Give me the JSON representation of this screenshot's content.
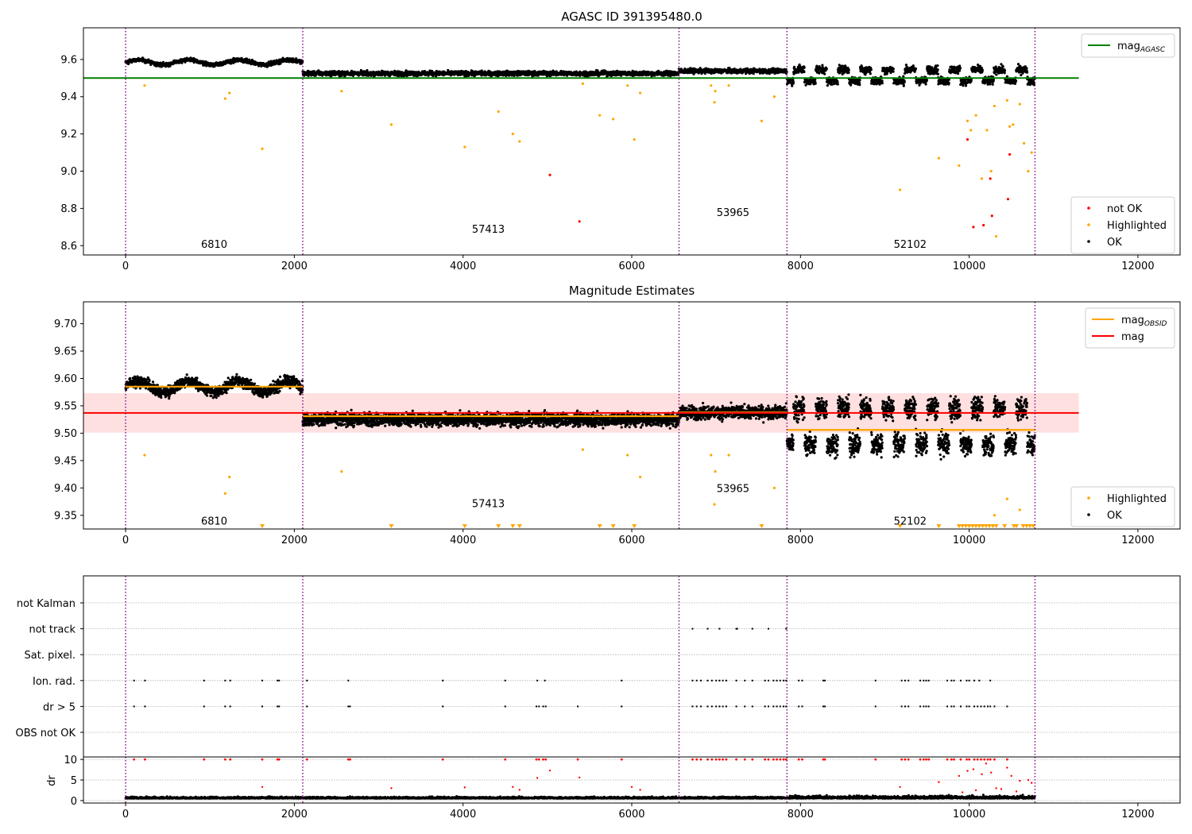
{
  "chart_data": [
    {
      "type": "scatter",
      "title": "AGASC ID 391395480.0",
      "xlim": [
        -500,
        12500
      ],
      "ylim": [
        8.55,
        9.77
      ],
      "x_ticks": [
        0,
        2000,
        4000,
        6000,
        8000,
        10000,
        12000
      ],
      "y_ticks": [
        8.6,
        8.8,
        9.0,
        9.2,
        9.4,
        9.6
      ],
      "reference_line": {
        "name": "mag",
        "subscript": "AGASC",
        "y": 9.5,
        "x_range": [
          -500,
          11300
        ],
        "color": "#008000"
      },
      "obsid_boundaries": [
        0,
        2100,
        6560,
        7840,
        10780
      ],
      "obsid_labels": [
        {
          "text": "6810",
          "x": 1050,
          "y": 8.61
        },
        {
          "text": "57413",
          "x": 4300,
          "y": 8.69
        },
        {
          "text": "53965",
          "x": 7200,
          "y": 8.78
        },
        {
          "text": "52102",
          "x": 9300,
          "y": 8.61
        }
      ],
      "legends": [
        {
          "location": "top-right",
          "entries": [
            {
              "label": "mag",
              "subscript": "AGASC",
              "kind": "line",
              "color": "#008000"
            }
          ]
        },
        {
          "location": "bottom-right",
          "entries": [
            {
              "label": "not OK",
              "kind": "point",
              "color": "#ff0000"
            },
            {
              "label": "Highlighted",
              "kind": "point",
              "color": "#ffa500"
            },
            {
              "label": "OK",
              "kind": "point",
              "color": "#000000"
            }
          ]
        }
      ],
      "segments": [
        {
          "x": [
            0,
            2100
          ],
          "mean": 9.585,
          "spread": 0.03
        },
        {
          "x": [
            2100,
            6560
          ],
          "mean": 9.525,
          "spread": 0.035
        },
        {
          "x": [
            6560,
            7840
          ],
          "mean": 9.538,
          "spread": 0.035
        },
        {
          "x": [
            7840,
            10780
          ],
          "mean": 9.51,
          "spread": 0.06
        }
      ],
      "highlighted_points": [
        [
          1180,
          9.39
        ],
        [
          1230,
          9.42
        ],
        [
          1620,
          9.12
        ],
        [
          2560,
          9.43
        ],
        [
          3150,
          9.25
        ],
        [
          4020,
          9.13
        ],
        [
          4420,
          9.32
        ],
        [
          4590,
          9.2
        ],
        [
          4670,
          9.16
        ],
        [
          5420,
          9.47
        ],
        [
          5620,
          9.3
        ],
        [
          5780,
          9.28
        ],
        [
          5950,
          9.46
        ],
        [
          6030,
          9.17
        ],
        [
          6100,
          9.42
        ],
        [
          6940,
          9.46
        ],
        [
          6980,
          9.37
        ],
        [
          6990,
          9.43
        ],
        [
          7150,
          9.46
        ],
        [
          7540,
          9.27
        ],
        [
          7690,
          9.4
        ],
        [
          9180,
          8.9
        ],
        [
          9640,
          9.07
        ],
        [
          9880,
          9.03
        ],
        [
          9980,
          9.27
        ],
        [
          10020,
          9.22
        ],
        [
          10080,
          9.3
        ],
        [
          10150,
          8.96
        ],
        [
          10210,
          9.22
        ],
        [
          10260,
          9.0
        ],
        [
          10300,
          9.35
        ],
        [
          10320,
          8.65
        ],
        [
          10450,
          9.38
        ],
        [
          10480,
          9.24
        ],
        [
          10520,
          9.25
        ],
        [
          10600,
          9.36
        ],
        [
          10650,
          9.15
        ],
        [
          10700,
          9.0
        ],
        [
          10740,
          9.1
        ],
        [
          225,
          9.46
        ]
      ],
      "not_ok_points": [
        [
          5030,
          8.98
        ],
        [
          5380,
          8.73
        ],
        [
          9980,
          9.17
        ],
        [
          10050,
          8.7
        ],
        [
          10170,
          8.71
        ],
        [
          10250,
          8.96
        ],
        [
          10270,
          8.76
        ],
        [
          10460,
          8.85
        ],
        [
          10480,
          9.09
        ]
      ]
    },
    {
      "type": "scatter",
      "title": "Magnitude Estimates",
      "xlim": [
        -500,
        12500
      ],
      "ylim": [
        9.325,
        9.74
      ],
      "x_ticks": [
        0,
        2000,
        4000,
        6000,
        8000,
        10000,
        12000
      ],
      "y_ticks": [
        9.35,
        9.4,
        9.45,
        9.5,
        9.55,
        9.6,
        9.65,
        9.7
      ],
      "mag_line": {
        "name": "mag",
        "y": 9.537,
        "band": [
          9.501,
          9.573
        ],
        "x_range": [
          -500,
          11300
        ],
        "color": "#ff0000",
        "band_color": "#ffe0e0"
      },
      "obsid_mag_lines": [
        {
          "x": [
            0,
            2100
          ],
          "y": 9.585
        },
        {
          "x": [
            2100,
            6560
          ],
          "y": 9.531
        },
        {
          "x": [
            6560,
            7840
          ],
          "y": 9.538
        },
        {
          "x": [
            7840,
            10780
          ],
          "y": 9.506
        }
      ],
      "obsid_boundaries": [
        0,
        2100,
        6560,
        7840,
        10780
      ],
      "obsid_labels": [
        {
          "text": "6810",
          "x": 1050,
          "y": 9.34
        },
        {
          "text": "57413",
          "x": 4300,
          "y": 9.372
        },
        {
          "text": "53965",
          "x": 7200,
          "y": 9.4
        },
        {
          "text": "52102",
          "x": 9300,
          "y": 9.34
        }
      ],
      "legends": [
        {
          "location": "top-right",
          "entries": [
            {
              "label": "mag",
              "subscript": "OBSID",
              "kind": "line",
              "color": "#ffa500"
            },
            {
              "label": "mag",
              "subscript": "",
              "kind": "line",
              "color": "#ff0000"
            }
          ]
        },
        {
          "location": "bottom-right",
          "entries": [
            {
              "label": "Highlighted",
              "kind": "point",
              "color": "#ffa500"
            },
            {
              "label": "OK",
              "kind": "point",
              "color": "#000000"
            }
          ]
        }
      ],
      "lower_limit_markers_x": [
        1620,
        3150,
        4020,
        4420,
        4590,
        4670,
        5620,
        5780,
        6030,
        7540,
        9180,
        9640,
        9880,
        9920,
        9960,
        10000,
        10040,
        10080,
        10120,
        10160,
        10200,
        10240,
        10280,
        10320,
        10420,
        10530,
        10560,
        10640,
        10680,
        10720,
        10760
      ]
    },
    {
      "type": "scatter",
      "flag_labels": [
        "not Kalman",
        "not track",
        "Sat. pixel.",
        "Ion. rad.",
        "dr > 5",
        "OBS not OK"
      ],
      "xlim": [
        -500,
        12500
      ],
      "x_ticks": [
        0,
        2000,
        4000,
        6000,
        8000,
        10000,
        12000
      ],
      "flag_events": {
        "not track": [
          6720,
          6900,
          7040,
          7240,
          7250,
          7430,
          7620,
          7830
        ],
        "Ion. rad.": [
          100,
          230,
          930,
          1180,
          1240,
          1620,
          1800,
          1820,
          2150,
          2640,
          3760,
          4500,
          4880,
          4970,
          5880,
          6720,
          6770,
          6820,
          6900,
          6950,
          7000,
          7040,
          7080,
          7120,
          7240,
          7340,
          7430,
          7580,
          7620,
          7680,
          7720,
          7760,
          7800,
          7830,
          7980,
          8020,
          8270,
          8290,
          8890,
          9200,
          9240,
          9280,
          9420,
          9460,
          9490,
          9520,
          9740,
          9790,
          9820,
          9900,
          9970,
          10000,
          10060,
          10120,
          10250
        ],
        "dr > 5": [
          100,
          230,
          930,
          1180,
          1240,
          1620,
          1800,
          1820,
          2150,
          2640,
          2660,
          3760,
          4500,
          4870,
          4900,
          4950,
          4980,
          5360,
          5880,
          6720,
          6770,
          6820,
          6900,
          6950,
          7000,
          7040,
          7080,
          7120,
          7240,
          7340,
          7430,
          7580,
          7620,
          7680,
          7720,
          7760,
          7800,
          7830,
          7980,
          8020,
          8270,
          8290,
          8890,
          9200,
          9240,
          9280,
          9420,
          9460,
          9490,
          9520,
          9740,
          9790,
          9820,
          9900,
          9970,
          10000,
          10060,
          10100,
          10140,
          10180,
          10220,
          10250,
          10300,
          10450
        ]
      },
      "dr_panel": {
        "ylabel": "dr",
        "ylim": [
          -0.6,
          10.6
        ],
        "y_ticks": [
          0,
          5,
          10
        ],
        "x_range": [
          0,
          10780
        ],
        "typical_dr": 0.5
      },
      "obsid_boundaries": [
        0,
        2100,
        6560,
        7840,
        10780
      ]
    }
  ],
  "colors": {
    "ok": "#000000",
    "highlighted": "#ffa500",
    "not_ok": "#ff0000",
    "agasc": "#008000",
    "boundary": "#800080",
    "grid": "#b0b0b0"
  }
}
